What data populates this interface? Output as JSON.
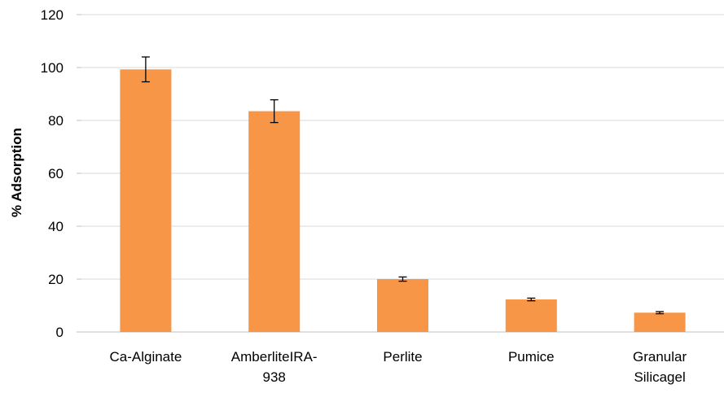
{
  "chart_data": {
    "type": "bar",
    "title": "",
    "xlabel": "",
    "ylabel": "% Adsorption",
    "ylim": [
      0,
      120
    ],
    "yticks": [
      0,
      20,
      40,
      60,
      80,
      100,
      120
    ],
    "grid": true,
    "categories": [
      [
        "Ca-Alginate"
      ],
      [
        "AmberliteIRA-",
        "938"
      ],
      [
        "Perlite"
      ],
      [
        "Pumice"
      ],
      [
        "Granular",
        "Silicagel"
      ]
    ],
    "values": [
      99.3,
      83.5,
      20.0,
      12.3,
      7.3
    ],
    "errors": [
      4.7,
      4.3,
      0.8,
      0.5,
      0.4
    ],
    "bar_color": "#f79646",
    "error_bar_color": "#000000",
    "grid_color": "#d9d9d9"
  }
}
